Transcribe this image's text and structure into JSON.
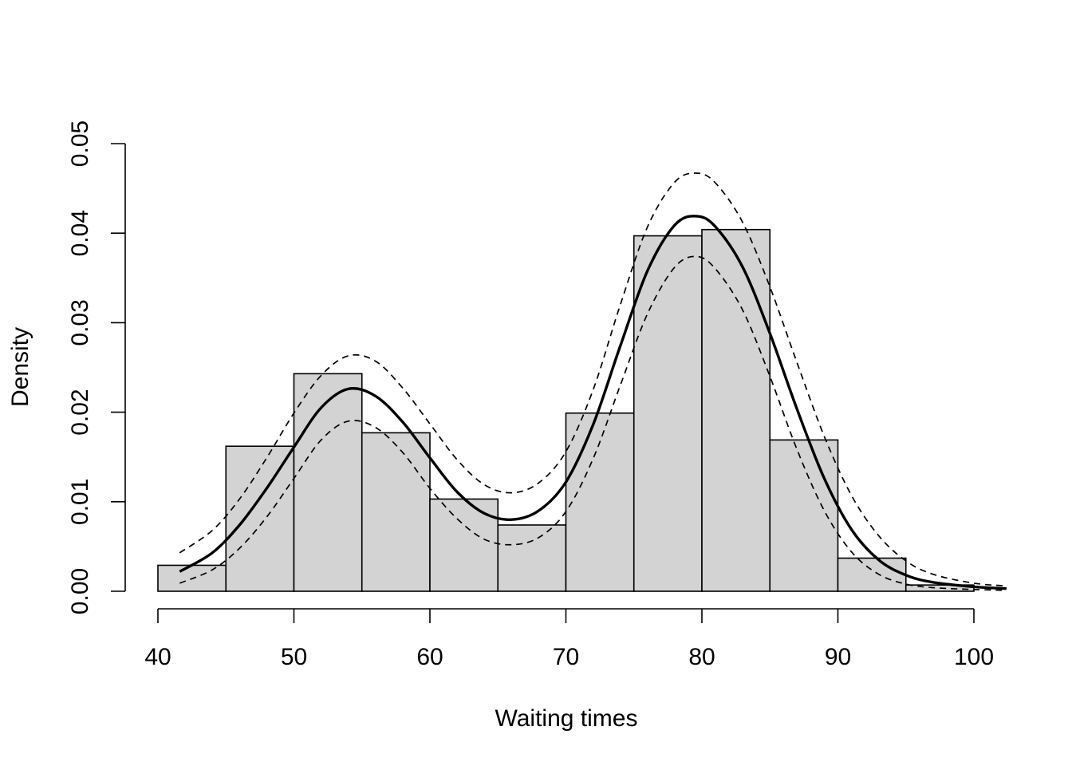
{
  "chart_data": {
    "type": "histogram",
    "xlabel": "Waiting times",
    "ylabel": "Density",
    "xlim": [
      40,
      100
    ],
    "ylim": [
      0,
      0.05
    ],
    "x_ticks": [
      "40",
      "50",
      "60",
      "70",
      "80",
      "90",
      "100"
    ],
    "y_ticks": [
      "0.00",
      "0.01",
      "0.02",
      "0.03",
      "0.04",
      "0.05"
    ],
    "grid": false,
    "legend": "none",
    "bar_color": "#d3d3d3",
    "line_color": "#000000",
    "bins": [
      {
        "from": 40,
        "to": 45,
        "density": 0.0029
      },
      {
        "from": 45,
        "to": 50,
        "density": 0.0162
      },
      {
        "from": 50,
        "to": 55,
        "density": 0.0243
      },
      {
        "from": 55,
        "to": 60,
        "density": 0.0177
      },
      {
        "from": 60,
        "to": 65,
        "density": 0.0103
      },
      {
        "from": 65,
        "to": 70,
        "density": 0.0074
      },
      {
        "from": 70,
        "to": 75,
        "density": 0.0199
      },
      {
        "from": 75,
        "to": 80,
        "density": 0.0397
      },
      {
        "from": 80,
        "to": 85,
        "density": 0.0404
      },
      {
        "from": 85,
        "to": 90,
        "density": 0.0169
      },
      {
        "from": 90,
        "to": 95,
        "density": 0.0037
      },
      {
        "from": 95,
        "to": 100,
        "density": 0.0007
      }
    ],
    "series": [
      {
        "style": "solid",
        "x": [
          41.6,
          44,
          46,
          48,
          50,
          52,
          54,
          56,
          58,
          60,
          62,
          64,
          66,
          68,
          70,
          72,
          74,
          76,
          78,
          79.6,
          81,
          83,
          85,
          87,
          89,
          91,
          93,
          95,
          97,
          100,
          102.4
        ],
        "y": [
          0.0022,
          0.0043,
          0.0074,
          0.0115,
          0.0161,
          0.0205,
          0.0226,
          0.0218,
          0.0189,
          0.0149,
          0.0111,
          0.0087,
          0.008,
          0.009,
          0.0122,
          0.0186,
          0.0274,
          0.0358,
          0.0409,
          0.0419,
          0.0407,
          0.0362,
          0.0288,
          0.0203,
          0.0126,
          0.0069,
          0.0035,
          0.0018,
          0.001,
          0.0005,
          0.0003
        ]
      },
      {
        "style": "dashed",
        "x": [
          41.6,
          44,
          46,
          48,
          50,
          52,
          54,
          56,
          58,
          60,
          62,
          64,
          66,
          68,
          70,
          72,
          74,
          76,
          78,
          79.6,
          81,
          83,
          85,
          87,
          89,
          91,
          93,
          95,
          97,
          100,
          102.4
        ],
        "y": [
          0.0043,
          0.0068,
          0.0103,
          0.0149,
          0.0199,
          0.0241,
          0.0263,
          0.0257,
          0.0227,
          0.0187,
          0.0147,
          0.0119,
          0.011,
          0.0121,
          0.0156,
          0.0225,
          0.032,
          0.0407,
          0.0457,
          0.0467,
          0.0456,
          0.0412,
          0.034,
          0.0255,
          0.0173,
          0.0107,
          0.0062,
          0.0034,
          0.0019,
          0.0009,
          0.0006
        ]
      },
      {
        "style": "dashed",
        "x": [
          41.6,
          44,
          46,
          48,
          50,
          52,
          54,
          56,
          58,
          60,
          62,
          64,
          66,
          68,
          70,
          72,
          74,
          76,
          78,
          79.6,
          81,
          83,
          85,
          87,
          89,
          91,
          93,
          95,
          97,
          100,
          102.4
        ],
        "y": [
          0.0009,
          0.0024,
          0.0048,
          0.0083,
          0.0126,
          0.0169,
          0.019,
          0.0183,
          0.0155,
          0.0115,
          0.0081,
          0.0058,
          0.0052,
          0.006,
          0.0089,
          0.0148,
          0.023,
          0.031,
          0.0362,
          0.0374,
          0.036,
          0.0314,
          0.024,
          0.0158,
          0.009,
          0.0044,
          0.0019,
          0.0008,
          0.0004,
          0.0002,
          0.0001
        ]
      }
    ]
  }
}
